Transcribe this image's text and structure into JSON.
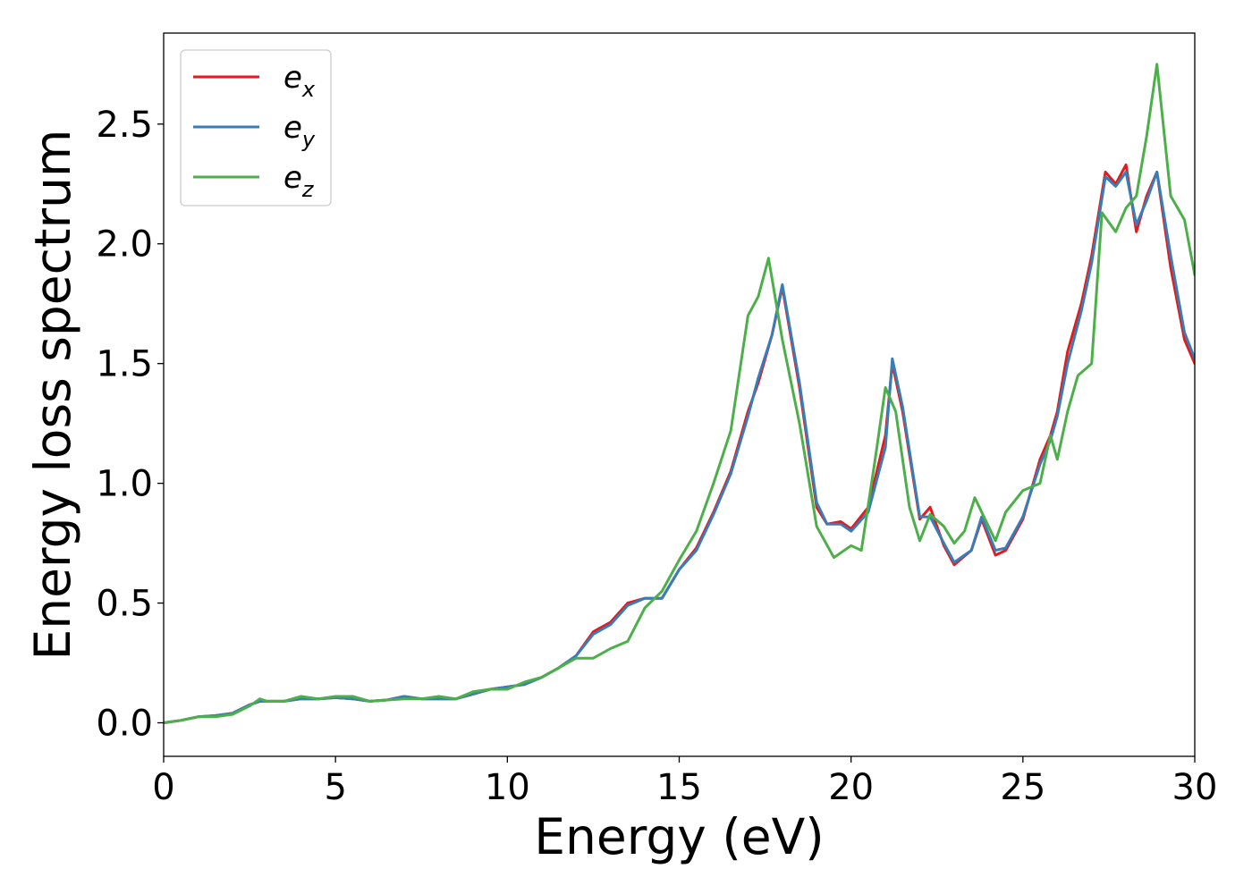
{
  "chart_data": {
    "type": "line",
    "xlabel": "Energy (eV)",
    "ylabel": "Energy loss spectrum",
    "xlim": [
      0,
      30
    ],
    "ylim": [
      -0.14,
      2.88
    ],
    "xticks": [
      0,
      5,
      10,
      15,
      20,
      25,
      30
    ],
    "yticks": [
      0.0,
      0.5,
      1.0,
      1.5,
      2.0,
      2.5
    ],
    "xtick_labels": [
      "0",
      "5",
      "10",
      "15",
      "20",
      "25",
      "30"
    ],
    "ytick_labels": [
      "0.0",
      "0.5",
      "1.0",
      "1.5",
      "2.0",
      "2.5"
    ],
    "grid": false,
    "legend": {
      "placement": "top-left"
    },
    "series": [
      {
        "name": "e",
        "subscript": "x",
        "color": "#e41a1c",
        "x": [
          0,
          0.5,
          1,
          1.5,
          2,
          2.5,
          2.8,
          3,
          3.5,
          4,
          4.5,
          5,
          5.5,
          6,
          6.5,
          7,
          7.5,
          8,
          8.5,
          9,
          9.5,
          10,
          10.5,
          11,
          11.5,
          12,
          12.5,
          13,
          13.5,
          14,
          14.5,
          15,
          15.5,
          16,
          16.5,
          17,
          17.3,
          17.7,
          18,
          18.5,
          19,
          19.3,
          19.7,
          20,
          20.5,
          21,
          21.2,
          21.5,
          22,
          22.3,
          22.7,
          23,
          23.5,
          23.8,
          24.2,
          24.5,
          25,
          25.5,
          25.8,
          26,
          26.3,
          26.7,
          27,
          27.4,
          27.7,
          28,
          28.3,
          28.6,
          28.9,
          29.3,
          29.7,
          30
        ],
        "y": [
          0,
          0.01,
          0.025,
          0.03,
          0.04,
          0.075,
          0.09,
          0.09,
          0.09,
          0.1,
          0.1,
          0.105,
          0.1,
          0.09,
          0.095,
          0.11,
          0.1,
          0.1,
          0.1,
          0.12,
          0.14,
          0.15,
          0.16,
          0.19,
          0.23,
          0.28,
          0.38,
          0.42,
          0.5,
          0.52,
          0.52,
          0.64,
          0.73,
          0.88,
          1.05,
          1.3,
          1.42,
          1.62,
          1.82,
          1.4,
          0.9,
          0.83,
          0.84,
          0.81,
          0.9,
          1.2,
          1.5,
          1.3,
          0.85,
          0.9,
          0.74,
          0.66,
          0.72,
          0.85,
          0.7,
          0.72,
          0.85,
          1.1,
          1.2,
          1.3,
          1.55,
          1.75,
          1.95,
          2.3,
          2.25,
          2.33,
          2.05,
          2.2,
          2.3,
          1.9,
          1.6,
          1.5
        ]
      },
      {
        "name": "e",
        "subscript": "y",
        "color": "#377eb8",
        "x": [
          0,
          0.5,
          1,
          1.5,
          2,
          2.5,
          2.8,
          3,
          3.5,
          4,
          4.5,
          5,
          5.5,
          6,
          6.5,
          7,
          7.5,
          8,
          8.5,
          9,
          9.5,
          10,
          10.5,
          11,
          11.5,
          12,
          12.5,
          13,
          13.5,
          14,
          14.5,
          15,
          15.5,
          16,
          16.5,
          17,
          17.3,
          17.7,
          18,
          18.5,
          19,
          19.3,
          19.7,
          20,
          20.5,
          21,
          21.2,
          21.5,
          22,
          22.3,
          22.7,
          23,
          23.5,
          23.8,
          24.2,
          24.5,
          25,
          25.5,
          25.8,
          26,
          26.3,
          26.7,
          27,
          27.4,
          27.7,
          28,
          28.3,
          28.6,
          28.9,
          29.3,
          29.7,
          30
        ],
        "y": [
          0,
          0.01,
          0.025,
          0.03,
          0.04,
          0.075,
          0.09,
          0.09,
          0.09,
          0.1,
          0.1,
          0.105,
          0.1,
          0.09,
          0.095,
          0.11,
          0.1,
          0.1,
          0.1,
          0.12,
          0.14,
          0.15,
          0.16,
          0.19,
          0.23,
          0.28,
          0.37,
          0.41,
          0.49,
          0.52,
          0.52,
          0.64,
          0.72,
          0.87,
          1.04,
          1.28,
          1.44,
          1.62,
          1.83,
          1.42,
          0.92,
          0.83,
          0.83,
          0.8,
          0.88,
          1.15,
          1.52,
          1.32,
          0.86,
          0.86,
          0.75,
          0.67,
          0.72,
          0.86,
          0.72,
          0.73,
          0.86,
          1.08,
          1.18,
          1.28,
          1.5,
          1.72,
          1.92,
          2.28,
          2.24,
          2.3,
          2.08,
          2.18,
          2.3,
          1.95,
          1.63,
          1.52
        ]
      },
      {
        "name": "e",
        "subscript": "z",
        "color": "#4daf4a",
        "x": [
          0,
          0.5,
          1,
          1.5,
          2,
          2.5,
          2.8,
          3,
          3.5,
          4,
          4.5,
          5,
          5.5,
          6,
          6.5,
          7,
          7.5,
          8,
          8.5,
          9,
          9.5,
          10,
          10.5,
          11,
          11.5,
          12,
          12.5,
          13,
          13.5,
          14,
          14.5,
          15,
          15.5,
          16,
          16.5,
          17,
          17.3,
          17.6,
          18,
          18.5,
          19,
          19.5,
          20,
          20.3,
          20.7,
          21,
          21.3,
          21.7,
          22,
          22.3,
          22.7,
          23,
          23.3,
          23.6,
          24.2,
          24.5,
          25,
          25.5,
          25.8,
          26,
          26.3,
          26.6,
          27,
          27.3,
          27.7,
          28,
          28.3,
          28.6,
          28.9,
          29.3,
          29.7,
          30
        ],
        "y": [
          0,
          0.01,
          0.025,
          0.025,
          0.035,
          0.07,
          0.1,
          0.09,
          0.09,
          0.11,
          0.1,
          0.11,
          0.11,
          0.09,
          0.095,
          0.1,
          0.1,
          0.11,
          0.1,
          0.13,
          0.14,
          0.14,
          0.17,
          0.19,
          0.23,
          0.27,
          0.27,
          0.31,
          0.34,
          0.48,
          0.55,
          0.68,
          0.8,
          1.0,
          1.22,
          1.7,
          1.78,
          1.94,
          1.6,
          1.25,
          0.82,
          0.69,
          0.74,
          0.72,
          1.1,
          1.4,
          1.3,
          0.9,
          0.76,
          0.87,
          0.82,
          0.75,
          0.8,
          0.94,
          0.76,
          0.88,
          0.97,
          1.0,
          1.2,
          1.1,
          1.3,
          1.45,
          1.5,
          2.13,
          2.05,
          2.15,
          2.2,
          2.45,
          2.75,
          2.2,
          2.1,
          1.87
        ]
      }
    ]
  }
}
